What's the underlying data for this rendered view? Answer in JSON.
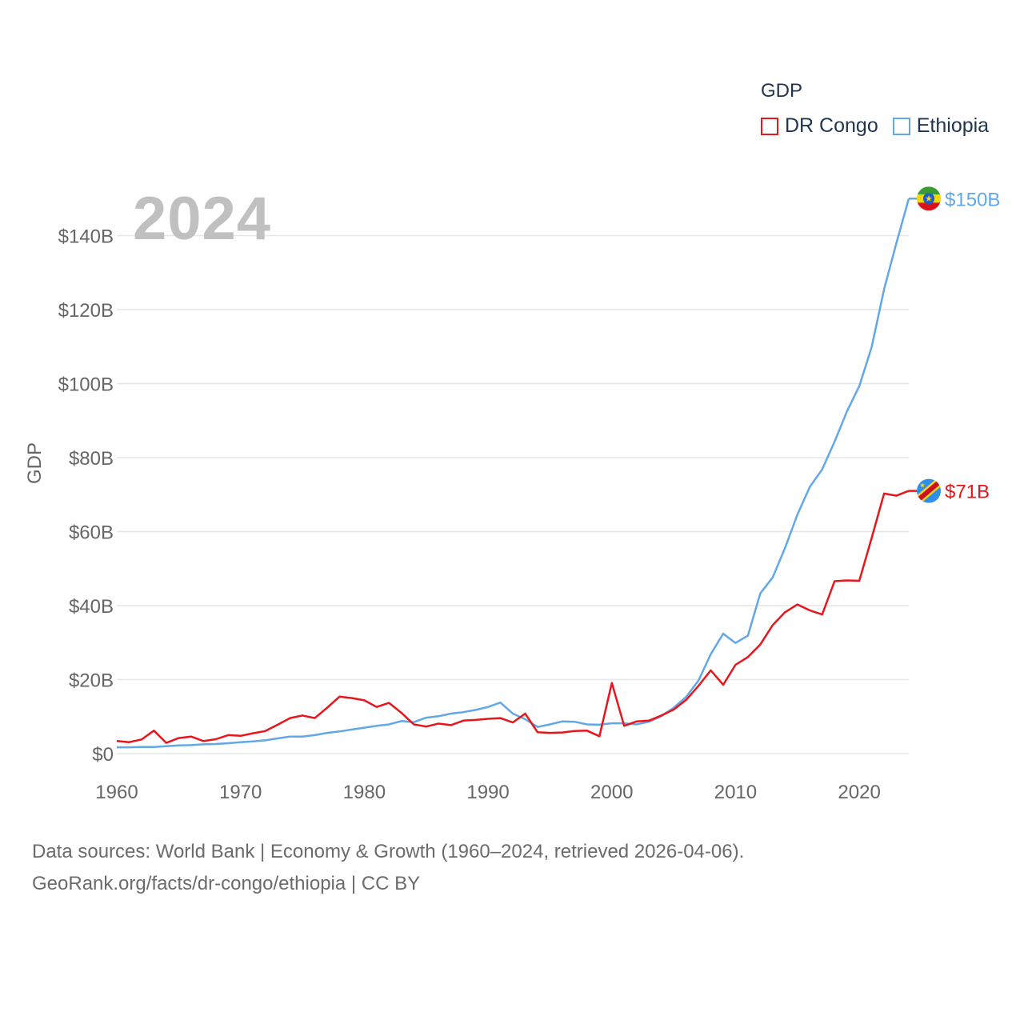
{
  "legend": {
    "title": "GDP",
    "items": [
      {
        "name": "DR Congo",
        "color": "#e8161b"
      },
      {
        "name": "Ethiopia",
        "color": "#62a8e8"
      }
    ]
  },
  "year_label": "2024",
  "source": {
    "line1": "Data sources: World Bank | Economy & Growth (1960–2024, retrieved 2026-04-06).",
    "line2": "GeoRank.org/facts/dr-congo/ethiopia | CC BY"
  },
  "chart_data": {
    "type": "line",
    "title": "GDP",
    "xlabel": "",
    "ylabel": "GDP",
    "xlim": [
      1960,
      2024
    ],
    "ylim": [
      0,
      150
    ],
    "yticks": [
      0,
      20,
      40,
      60,
      80,
      100,
      120,
      140
    ],
    "ytick_labels": [
      "$0",
      "$20B",
      "$40B",
      "$60B",
      "$80B",
      "$100B",
      "$120B",
      "$140B"
    ],
    "xticks": [
      1960,
      1970,
      1980,
      1990,
      2000,
      2010,
      2020
    ],
    "xtick_labels": [
      "1960",
      "1970",
      "1980",
      "1990",
      "2000",
      "2010",
      "2020"
    ],
    "grid": true,
    "x": [
      1960,
      1961,
      1962,
      1963,
      1964,
      1965,
      1966,
      1967,
      1968,
      1969,
      1970,
      1971,
      1972,
      1973,
      1974,
      1975,
      1976,
      1977,
      1978,
      1979,
      1980,
      1981,
      1982,
      1983,
      1984,
      1985,
      1986,
      1987,
      1988,
      1989,
      1990,
      1991,
      1992,
      1993,
      1994,
      1995,
      1996,
      1997,
      1998,
      1999,
      2000,
      2001,
      2002,
      2003,
      2004,
      2005,
      2006,
      2007,
      2008,
      2009,
      2010,
      2011,
      2012,
      2013,
      2014,
      2015,
      2016,
      2017,
      2018,
      2019,
      2020,
      2021,
      2022,
      2023,
      2024
    ],
    "series": [
      {
        "name": "DR Congo",
        "color": "#e8161b",
        "end_label": "$71B",
        "values": [
          3.4,
          3.1,
          3.8,
          6.2,
          2.9,
          4.2,
          4.6,
          3.4,
          3.9,
          5.0,
          4.8,
          5.5,
          6.1,
          7.8,
          9.6,
          10.3,
          9.6,
          12.4,
          15.4,
          15.0,
          14.4,
          12.6,
          13.7,
          11.0,
          7.9,
          7.3,
          8.1,
          7.7,
          8.9,
          9.1,
          9.4,
          9.6,
          8.4,
          10.8,
          5.8,
          5.6,
          5.7,
          6.1,
          6.2,
          4.7,
          19.1,
          7.5,
          8.7,
          8.9,
          10.3,
          11.9,
          14.5,
          18.3,
          22.5,
          18.6,
          24.0,
          26.1,
          29.5,
          34.7,
          38.2,
          40.3,
          38.7,
          37.6,
          46.6,
          46.8,
          46.7,
          58.3,
          70.3,
          69.7,
          71.0
        ]
      },
      {
        "name": "Ethiopia",
        "color": "#62a8e8",
        "end_label": "$150B",
        "values": [
          1.7,
          1.7,
          1.8,
          1.8,
          2.0,
          2.2,
          2.3,
          2.5,
          2.6,
          2.8,
          3.1,
          3.3,
          3.6,
          4.1,
          4.6,
          4.6,
          5.0,
          5.6,
          6.0,
          6.5,
          7.0,
          7.5,
          7.9,
          8.8,
          8.5,
          9.7,
          10.1,
          10.8,
          11.2,
          11.8,
          12.6,
          13.8,
          10.8,
          9.3,
          7.2,
          7.9,
          8.7,
          8.6,
          7.9,
          7.8,
          8.2,
          8.2,
          7.9,
          8.6,
          10.1,
          12.4,
          15.3,
          19.7,
          26.9,
          32.4,
          29.9,
          31.9,
          43.3,
          47.6,
          55.6,
          64.6,
          72.1,
          76.8,
          84.3,
          92.5,
          99.3,
          109.9,
          125.5,
          138.0,
          150.0
        ]
      }
    ]
  }
}
